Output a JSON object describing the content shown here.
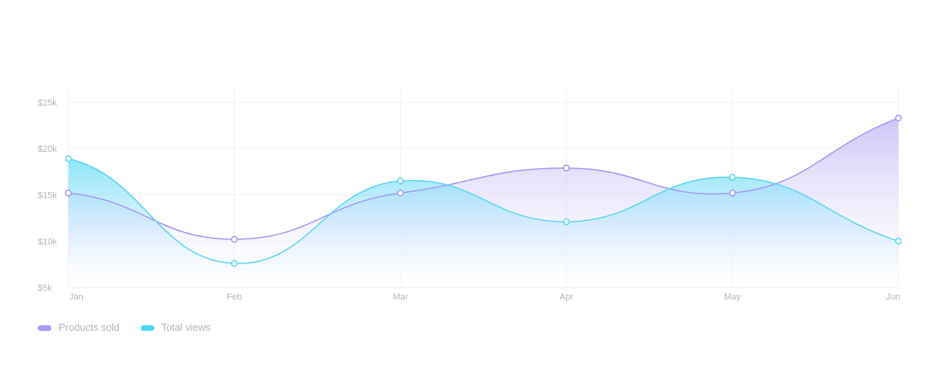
{
  "chart_data": {
    "type": "area",
    "categories": [
      "Jan",
      "Feb",
      "Mar",
      "Apr",
      "May",
      "Jun"
    ],
    "y_ticks": [
      "$5k",
      "$10k",
      "$15k",
      "$20k",
      "$25k"
    ],
    "y_tick_values": [
      5000,
      10000,
      15000,
      20000,
      25000
    ],
    "ylim": [
      5000,
      26500
    ],
    "grid": true,
    "legend_position": "bottom-left",
    "series": [
      {
        "name": "Products sold",
        "color": "#a99af3",
        "values": [
          15200,
          10200,
          15200,
          17900,
          15200,
          23300
        ]
      },
      {
        "name": "Total views",
        "color": "#5ed3ee",
        "values": [
          18900,
          7600,
          16500,
          12100,
          16900,
          10000
        ]
      }
    ]
  },
  "legend": {
    "items": [
      {
        "label": "Products sold",
        "color": "#a99af3"
      },
      {
        "label": "Total views",
        "color": "#4fd6f5"
      }
    ]
  }
}
